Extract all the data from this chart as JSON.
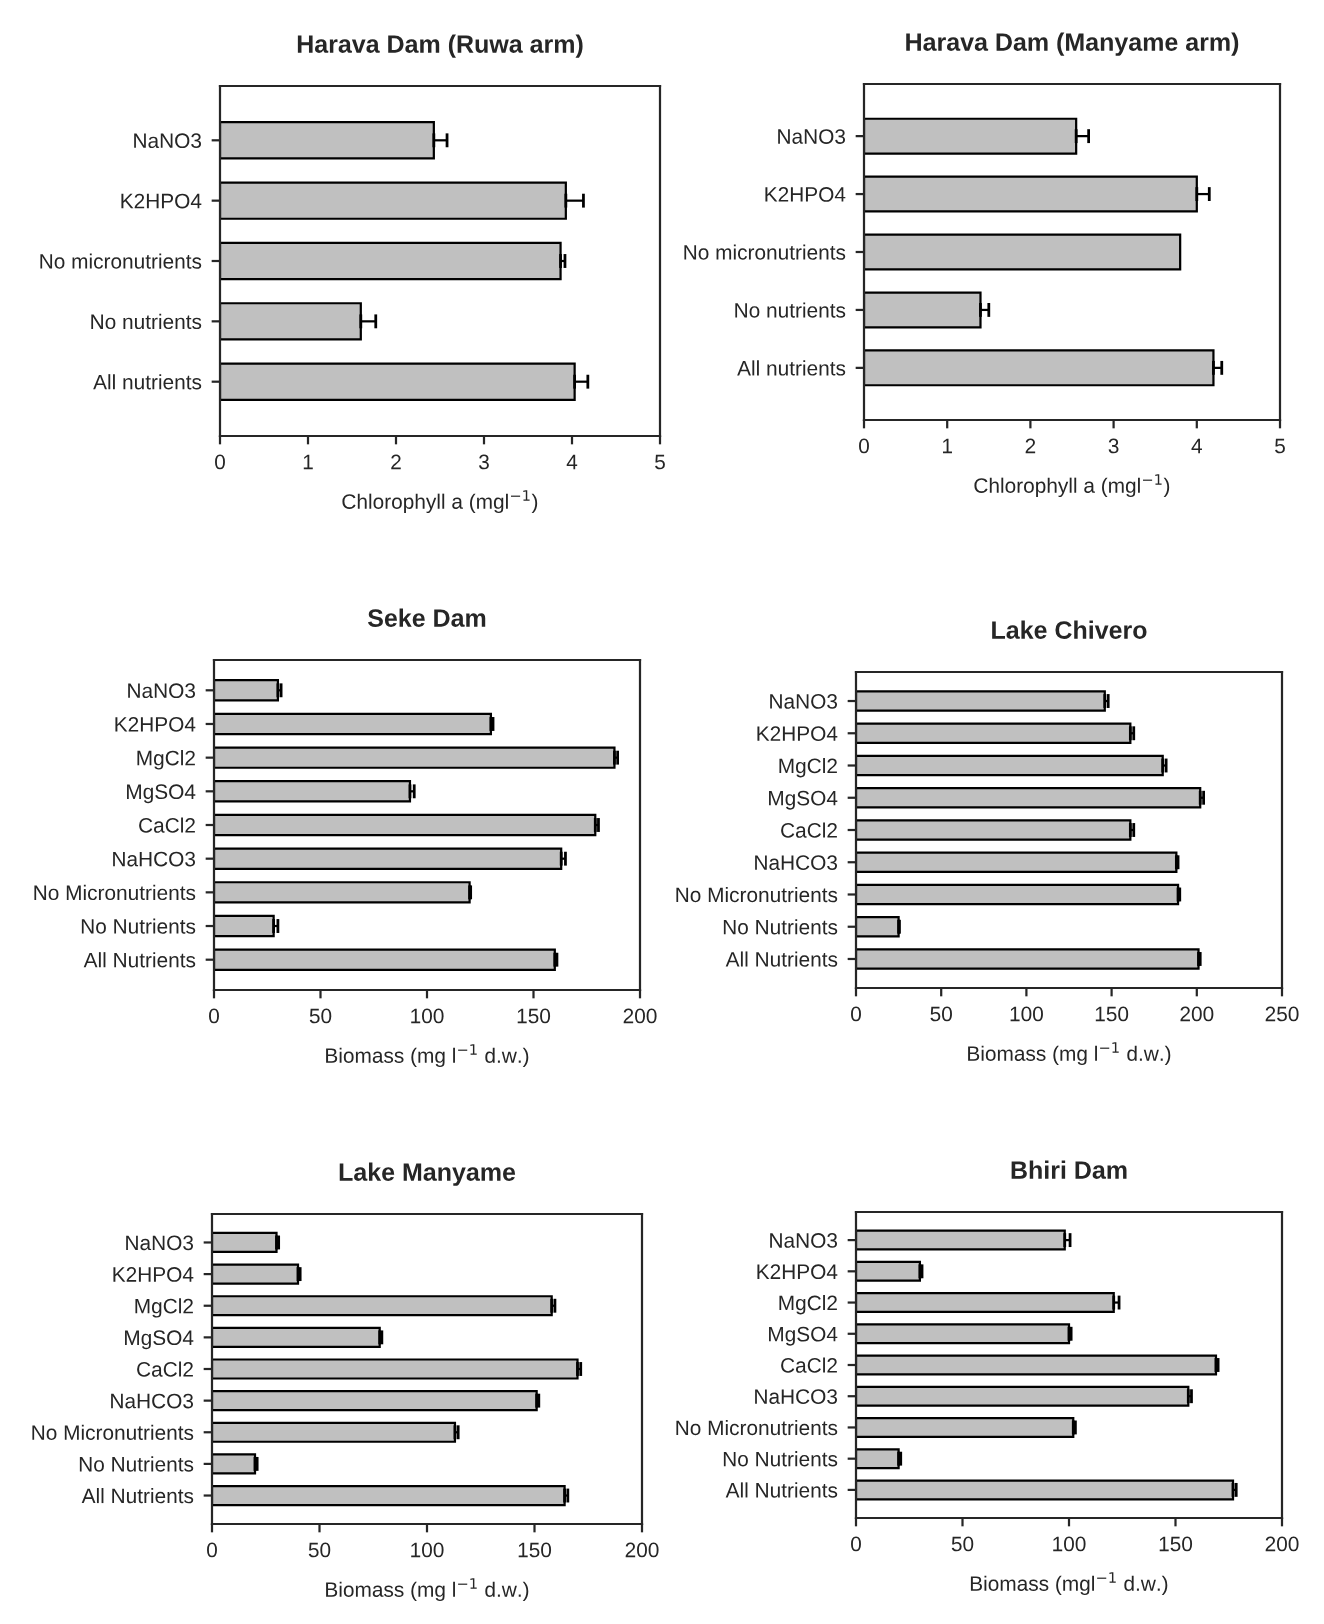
{
  "chart_data": [
    {
      "type": "bar",
      "orientation": "horizontal",
      "title": "Harava Dam (Ruwa arm)",
      "xlabel": "Chlorophyll a (mgl$^{−1}$)",
      "categories": [
        "NaNO3",
        "K2HPO4",
        "No micronutrients",
        "No nutrients",
        "All nutrients"
      ],
      "values": [
        2.43,
        3.93,
        3.87,
        1.6,
        4.03
      ],
      "errors": [
        0.15,
        0.2,
        0.05,
        0.17,
        0.15
      ],
      "color": "#c0c0c0",
      "xlim": [
        0,
        5
      ],
      "xticks": [
        0,
        1,
        2,
        3,
        4,
        5
      ],
      "grid": false,
      "legend": false
    },
    {
      "type": "bar",
      "orientation": "horizontal",
      "title": "Harava Dam (Manyame arm)",
      "xlabel": "Chlorophyll a (mgl$^{−1}$)",
      "categories": [
        "NaNO3",
        "K2HPO4",
        "No micronutrients",
        "No nutrients",
        "All nutrients"
      ],
      "values": [
        2.55,
        4.0,
        3.8,
        1.4,
        4.2
      ],
      "errors": [
        0.15,
        0.15,
        null,
        0.1,
        0.1
      ],
      "color": "#c0c0c0",
      "xlim": [
        0,
        5
      ],
      "xticks": [
        0,
        1,
        2,
        3,
        4,
        5
      ],
      "grid": false,
      "legend": false
    },
    {
      "type": "bar",
      "orientation": "horizontal",
      "title": "Seke Dam",
      "xlabel": "Biomass (mg l$^{−1}$ d.w.)",
      "categories": [
        "NaNO3",
        "K2HPO4",
        "MgCl2",
        "MgSO4",
        "CaCl2",
        "NaHCO3",
        "No Micronutrients",
        "No Nutrients",
        "All Nutrients"
      ],
      "values": [
        30,
        130,
        188,
        92,
        179,
        163,
        120,
        28,
        160
      ],
      "errors": [
        1.5,
        1,
        1.5,
        2,
        1.5,
        2,
        0.5,
        2,
        1
      ],
      "color": "#c0c0c0",
      "xlim": [
        0,
        200
      ],
      "xticks": [
        0,
        50,
        100,
        150,
        200
      ],
      "grid": false,
      "legend": false
    },
    {
      "type": "bar",
      "orientation": "horizontal",
      "title": "Lake Chivero",
      "xlabel": "Biomass (mg l$^{−1}$ d.w.)",
      "categories": [
        "NaNO3",
        "K2HPO4",
        "MgCl2",
        "MgSO4",
        "CaCl2",
        "NaHCO3",
        "No Micronutrients",
        "No Nutrients",
        "All Nutrients"
      ],
      "values": [
        146,
        161,
        180,
        202,
        161,
        188,
        189,
        25,
        201
      ],
      "errors": [
        2,
        2,
        2,
        2,
        2,
        1,
        1,
        0.5,
        1
      ],
      "color": "#c0c0c0",
      "xlim": [
        0,
        250
      ],
      "xticks": [
        0,
        50,
        100,
        150,
        200,
        250
      ],
      "grid": false,
      "legend": false
    },
    {
      "type": "bar",
      "orientation": "horizontal",
      "title": "Lake Manyame",
      "xlabel": "Biomass (mg l$^{−1}$ d.w.)",
      "categories": [
        "NaNO3",
        "K2HPO4",
        "MgCl2",
        "MgSO4",
        "CaCl2",
        "NaHCO3",
        "No Micronutrients",
        "No Nutrients",
        "All Nutrients"
      ],
      "values": [
        30,
        40,
        158,
        78,
        170,
        151,
        113,
        20,
        164
      ],
      "errors": [
        1,
        1,
        1.5,
        1,
        1.5,
        1,
        1.5,
        1,
        1.5
      ],
      "color": "#c0c0c0",
      "xlim": [
        0,
        200
      ],
      "xticks": [
        0,
        50,
        100,
        150,
        200
      ],
      "grid": false,
      "legend": false
    },
    {
      "type": "bar",
      "orientation": "horizontal",
      "title": "Bhiri Dam",
      "xlabel": "Biomass (mgl$^{−1}$ d.w.)",
      "categories": [
        "NaNO3",
        "K2HPO4",
        "MgCl2",
        "MgSO4",
        "CaCl2",
        "NaHCO3",
        "No Micronutrients",
        "No Nutrients",
        "All Nutrients"
      ],
      "values": [
        98,
        30,
        121,
        100,
        169,
        156,
        102,
        20,
        177
      ],
      "errors": [
        2.5,
        1,
        2.5,
        1,
        1,
        1.5,
        1,
        1,
        1.5
      ],
      "color": "#c0c0c0",
      "xlim": [
        0,
        200
      ],
      "xticks": [
        0,
        50,
        100,
        150,
        200
      ],
      "grid": false,
      "legend": false
    }
  ]
}
